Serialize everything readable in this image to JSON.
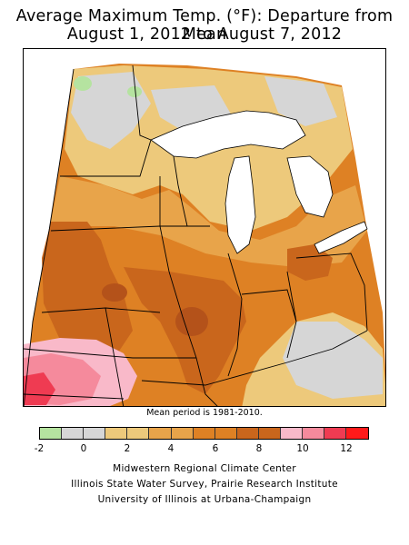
{
  "title": {
    "line1": "Average Maximum Temp. (°F): Departure from Mean",
    "line2": "August 1, 2012 to August 7, 2012"
  },
  "map": {
    "region": "Midwestern United States",
    "colors": {
      "neg": "#b5e3a0",
      "zero": "#d6d6d6",
      "c2": "#edc97b",
      "c4": "#e8a44a",
      "c6": "#de8124",
      "c8": "#c9661c",
      "c10": "#b4521a",
      "p1": "#f9b9c9",
      "p2": "#f58a9c",
      "p3": "#ef3b52",
      "lake": "#ffffff",
      "border": "#000000"
    }
  },
  "mean_period_note": "Mean period is 1981-2010.",
  "legend": {
    "colors": [
      "#b5e3a0",
      "#d6d6d6",
      "#d6d6d6",
      "#edc97b",
      "#edc97b",
      "#e8a44a",
      "#e8a44a",
      "#de8124",
      "#de8124",
      "#c9661c",
      "#c9661c",
      "#f9b9c9",
      "#f58a9c",
      "#ef3b52",
      "#ff1a1a"
    ],
    "ticks": [
      "-2",
      "0",
      "2",
      "4",
      "6",
      "8",
      "10",
      "12"
    ]
  },
  "credits": {
    "line1": "Midwestern Regional Climate Center",
    "line2": "Illinois State Water Survey, Prairie Research Institute",
    "line3": "University of Illinois at Urbana-Champaign"
  }
}
